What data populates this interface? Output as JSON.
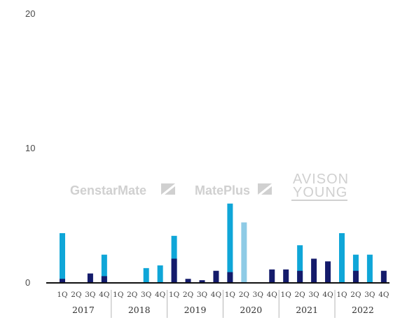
{
  "colors": {
    "light_blue": "#0fa6d8",
    "navy": "#141b6b",
    "pale_blue": "#8ecbe6",
    "axis": "#111111",
    "watermark": "#d0d0d0"
  },
  "watermarks": [
    "GenstarMate",
    "MatePlus",
    "AVISON",
    "YOUNG"
  ],
  "chart_data": {
    "type": "bar",
    "stacked": false,
    "ylim": [
      0,
      20
    ],
    "yticks": [
      "0",
      "10",
      "20"
    ],
    "grid": false,
    "title": "",
    "xlabel": "",
    "ylabel": "",
    "years": [
      "2017",
      "2018",
      "2019",
      "2020",
      "2021",
      "2022"
    ],
    "quarters": [
      "1Q",
      "2Q",
      "3Q",
      "4Q"
    ],
    "categories": [
      "2017 1Q",
      "2017 2Q",
      "2017 3Q",
      "2017 4Q",
      "2018 1Q",
      "2018 2Q",
      "2018 3Q",
      "2018 4Q",
      "2019 1Q",
      "2019 2Q",
      "2019 3Q",
      "2019 4Q",
      "2020 1Q",
      "2020 2Q",
      "2020 3Q",
      "2020 4Q",
      "2021 1Q",
      "2021 2Q",
      "2021 3Q",
      "2021 4Q",
      "2022 1Q",
      "2022 2Q",
      "2022 3Q",
      "2022 4Q"
    ],
    "series": [
      {
        "color": "#0fa6d8",
        "values": [
          3.7,
          0,
          0,
          2.1,
          0,
          0,
          1.1,
          1.3,
          3.5,
          0,
          0,
          0,
          5.9,
          0,
          0,
          0,
          0,
          2.8,
          0,
          0,
          3.7,
          2.1,
          2.1,
          0
        ]
      },
      {
        "color": "#8ecbe6",
        "values": [
          0,
          0,
          0,
          0,
          0,
          0,
          0,
          0,
          0,
          0,
          0,
          0,
          0,
          4.5,
          0,
          0,
          0,
          0,
          0,
          0,
          0,
          0,
          0,
          0
        ]
      },
      {
        "color": "#141b6b",
        "values": [
          0.3,
          0,
          0.7,
          0.5,
          0,
          0,
          0,
          0,
          1.8,
          0.3,
          0.2,
          0.9,
          0.8,
          0,
          0,
          1.0,
          1.0,
          0.9,
          1.8,
          1.6,
          0,
          0.9,
          0,
          0.9
        ]
      }
    ]
  }
}
